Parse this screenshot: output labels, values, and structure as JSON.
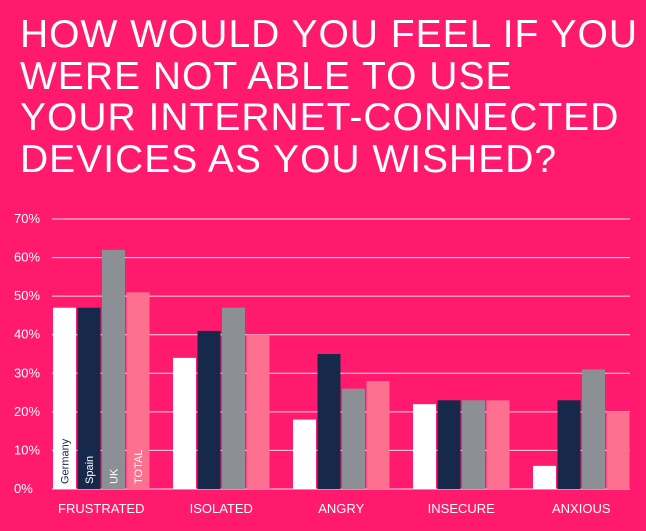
{
  "title": "HOW WOULD YOU FEEL IF YOU WERE NOT ABLE TO USE YOUR INTERNET-CONNECTED DEVICES AS YOU WISHED?",
  "colors": {
    "background": "#ff1a6e",
    "germany": "#ffffff",
    "spain": "#17294a",
    "uk": "#8c8f96",
    "total": "#ff6f8f"
  },
  "chart_data": {
    "type": "bar",
    "categories": [
      "FRUSTRATED",
      "ISOLATED",
      "ANGRY",
      "INSECURE",
      "ANXIOUS"
    ],
    "series": [
      {
        "name": "Germany",
        "values": [
          47,
          34,
          18,
          22,
          6
        ]
      },
      {
        "name": "Spain",
        "values": [
          47,
          41,
          35,
          23,
          23
        ]
      },
      {
        "name": "UK",
        "values": [
          62,
          47,
          26,
          23,
          31
        ]
      },
      {
        "name": "TOTAL",
        "values": [
          51,
          40,
          28,
          23,
          20
        ]
      }
    ],
    "yticks": [
      "0%",
      "10%",
      "20%",
      "30%",
      "40%",
      "50%",
      "60%",
      "70%"
    ],
    "ylim": [
      0,
      70
    ],
    "grid": true,
    "legend": "labels inside first group's bars"
  }
}
